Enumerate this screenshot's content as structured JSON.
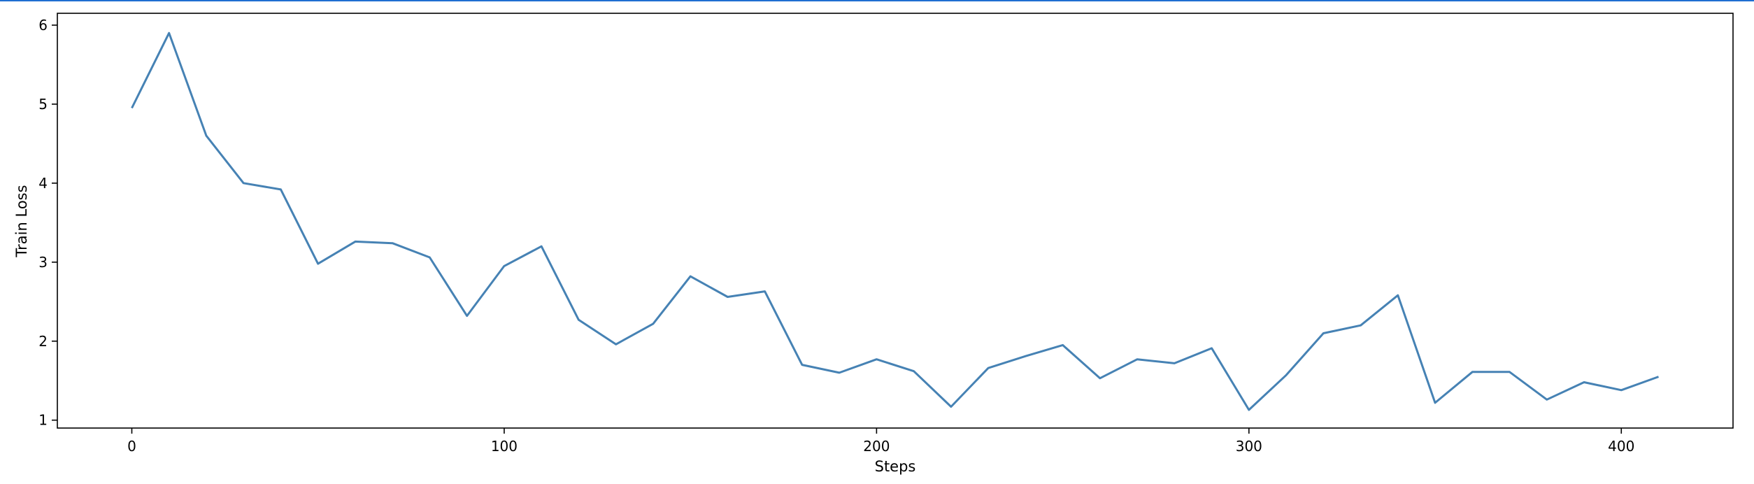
{
  "chart_data": {
    "type": "line",
    "xlabel": "Steps",
    "ylabel": "Train Loss",
    "xlim": [
      -20,
      430
    ],
    "ylim": [
      0.9,
      6.15
    ],
    "xticks": [
      0,
      100,
      200,
      300,
      400
    ],
    "yticks": [
      1,
      2,
      3,
      4,
      5,
      6
    ],
    "grid": false,
    "line_color": "#4682b4",
    "series": [
      {
        "x": [
          0,
          10,
          20,
          30,
          40,
          50,
          60,
          70,
          80,
          90,
          100,
          110,
          120,
          130,
          140,
          150,
          160,
          170,
          180,
          190,
          200,
          210,
          220,
          230,
          240,
          250,
          260,
          270,
          280,
          290,
          300,
          310,
          320,
          330,
          340,
          350,
          360,
          370,
          380,
          390,
          400,
          410
        ],
        "values": [
          4.95,
          5.9,
          4.6,
          4.0,
          3.92,
          2.98,
          3.26,
          3.24,
          3.06,
          2.32,
          2.95,
          3.2,
          2.27,
          1.96,
          2.22,
          2.82,
          2.56,
          2.63,
          1.7,
          1.6,
          1.77,
          1.62,
          1.17,
          1.66,
          1.81,
          1.95,
          1.53,
          1.77,
          1.72,
          1.91,
          1.13,
          1.57,
          2.1,
          2.2,
          2.58,
          1.22,
          1.61,
          1.61,
          1.26,
          1.48,
          1.38,
          1.55
        ]
      }
    ]
  },
  "accent_color": "#1f6fd1"
}
